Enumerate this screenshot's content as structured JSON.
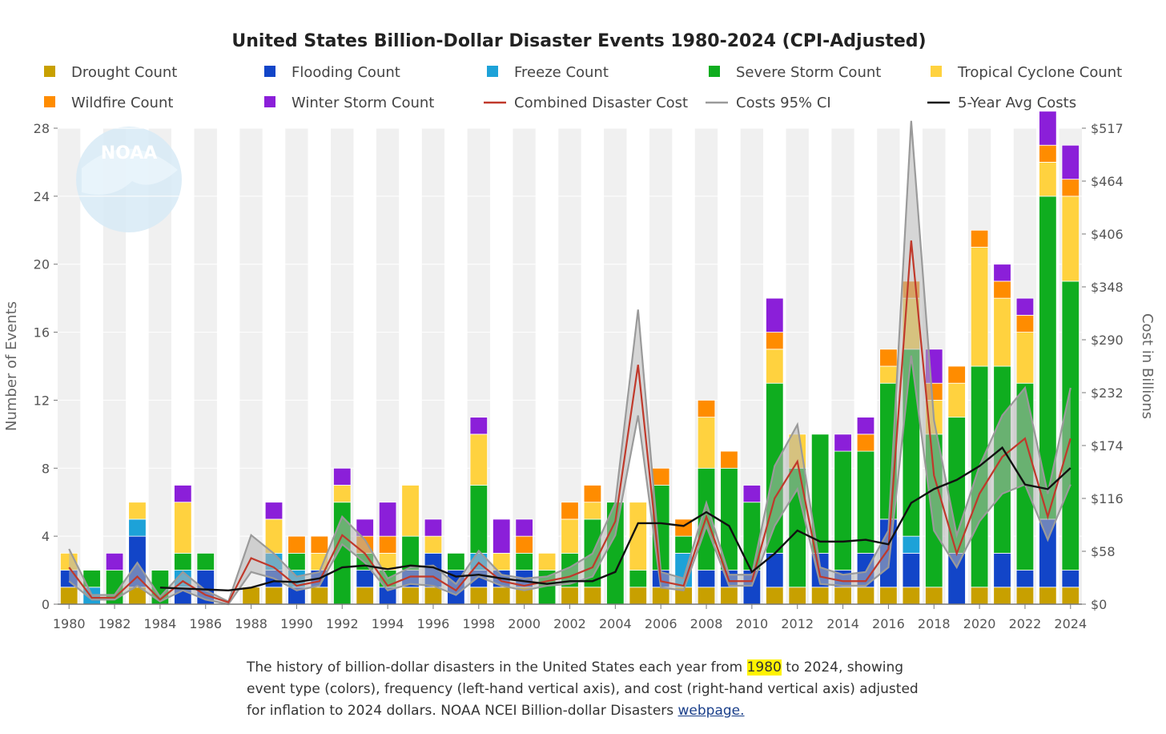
{
  "caption": {
    "part1": "The history of billion-dollar disasters in the United States each year from ",
    "highlight": "1980",
    "part2": " to 2024, showing event type (colors), frequency (left-hand vertical axis), and cost (right-hand vertical axis) adjusted for inflation to 2024 dollars. NOAA NCEI Billion-dollar Disasters ",
    "link_text": "webpage."
  },
  "logo_text": "NOAA",
  "chart_data": {
    "type": "bar",
    "stacked": true,
    "title": "United States Billion-Dollar Disaster Events 1980-2024 (CPI-Adjusted)",
    "ylabel": "Number of Events",
    "y2label": "Cost in Billions",
    "ylim": [
      0,
      28
    ],
    "y2lim": [
      0,
      517
    ],
    "yticks": [
      0,
      4,
      8,
      12,
      16,
      20,
      24,
      28
    ],
    "y2ticks": [
      "$0",
      "$58",
      "$116",
      "$174",
      "$232",
      "$290",
      "$348",
      "$406",
      "$464",
      "$517"
    ],
    "categories": [
      1980,
      1981,
      1982,
      1983,
      1984,
      1985,
      1986,
      1987,
      1988,
      1989,
      1990,
      1991,
      1992,
      1993,
      1994,
      1995,
      1996,
      1997,
      1998,
      1999,
      2000,
      2001,
      2002,
      2003,
      2004,
      2005,
      2006,
      2007,
      2008,
      2009,
      2010,
      2011,
      2012,
      2013,
      2014,
      2015,
      2016,
      2017,
      2018,
      2019,
      2020,
      2021,
      2022,
      2023,
      2024
    ],
    "xtick_labels": [
      "1980",
      "1982",
      "1984",
      "1986",
      "1988",
      "1990",
      "1992",
      "1994",
      "1996",
      "1998",
      "2000",
      "2002",
      "2004",
      "2006",
      "2008",
      "2010",
      "2012",
      "2014",
      "2016",
      "2018",
      "2020",
      "2022",
      "2024"
    ],
    "series": [
      {
        "name": "Drought Count",
        "color": "#c8a000",
        "values": [
          1,
          0,
          0,
          1,
          0,
          0,
          0,
          0,
          1,
          1,
          0,
          1,
          0,
          1,
          0,
          1,
          1,
          0,
          1,
          1,
          1,
          0,
          1,
          1,
          0,
          1,
          1,
          1,
          1,
          1,
          0,
          1,
          1,
          1,
          1,
          1,
          1,
          1,
          1,
          0,
          1,
          1,
          1,
          1,
          1
        ]
      },
      {
        "name": "Flooding Count",
        "color": "#1245c8",
        "values": [
          1,
          0,
          0,
          3,
          0,
          1,
          2,
          0,
          0,
          1,
          1,
          1,
          0,
          1,
          1,
          1,
          2,
          2,
          1,
          1,
          1,
          0,
          0,
          0,
          0,
          0,
          1,
          0,
          1,
          1,
          2,
          2,
          0,
          2,
          1,
          2,
          4,
          2,
          0,
          3,
          0,
          2,
          1,
          4,
          1
        ]
      },
      {
        "name": "Freeze Count",
        "color": "#1da2d8",
        "values": [
          0,
          1,
          0,
          1,
          0,
          1,
          0,
          0,
          0,
          1,
          1,
          0,
          0,
          0,
          0,
          0,
          0,
          0,
          1,
          0,
          0,
          0,
          0,
          0,
          0,
          0,
          0,
          2,
          0,
          0,
          0,
          0,
          0,
          0,
          0,
          0,
          0,
          1,
          0,
          0,
          0,
          0,
          0,
          0,
          0
        ]
      },
      {
        "name": "Severe Storm Count",
        "color": "#0fad1f",
        "values": [
          0,
          1,
          2,
          0,
          2,
          1,
          1,
          0,
          0,
          0,
          1,
          0,
          6,
          1,
          1,
          2,
          0,
          1,
          4,
          0,
          1,
          2,
          2,
          4,
          6,
          1,
          5,
          1,
          6,
          6,
          4,
          10,
          7,
          7,
          7,
          6,
          8,
          11,
          9,
          8,
          13,
          11,
          11,
          19,
          17
        ]
      },
      {
        "name": "Tropical Cyclone Count",
        "color": "#ffd23f",
        "values": [
          1,
          0,
          0,
          1,
          0,
          3,
          0,
          0,
          0,
          2,
          0,
          1,
          1,
          0,
          1,
          3,
          1,
          0,
          3,
          1,
          0,
          1,
          2,
          1,
          0,
          4,
          0,
          0,
          3,
          0,
          0,
          2,
          2,
          0,
          0,
          0,
          1,
          3,
          2,
          2,
          7,
          4,
          3,
          2,
          5
        ]
      },
      {
        "name": "Wildfire Count",
        "color": "#ff8c00",
        "values": [
          0,
          0,
          0,
          0,
          0,
          0,
          0,
          0,
          0,
          0,
          1,
          1,
          0,
          1,
          1,
          0,
          0,
          0,
          0,
          0,
          1,
          0,
          1,
          1,
          0,
          0,
          1,
          1,
          1,
          1,
          0,
          1,
          0,
          0,
          0,
          1,
          1,
          1,
          1,
          1,
          1,
          1,
          1,
          1,
          1
        ]
      },
      {
        "name": "Winter Storm Count",
        "color": "#8b1fd9",
        "values": [
          0,
          0,
          1,
          0,
          0,
          1,
          0,
          0,
          0,
          1,
          0,
          0,
          1,
          1,
          2,
          0,
          1,
          0,
          1,
          2,
          1,
          0,
          0,
          0,
          0,
          0,
          0,
          0,
          0,
          0,
          1,
          2,
          0,
          0,
          1,
          1,
          0,
          0,
          2,
          0,
          0,
          1,
          1,
          2,
          2
        ]
      }
    ],
    "cost_series": {
      "name": "Combined Disaster Cost",
      "color": "#c0392b",
      "values": [
        40,
        7,
        7,
        30,
        5,
        25,
        10,
        2,
        50,
        40,
        20,
        25,
        75,
        55,
        20,
        30,
        30,
        15,
        45,
        25,
        20,
        25,
        30,
        40,
        90,
        260,
        25,
        20,
        95,
        25,
        25,
        115,
        155,
        30,
        25,
        25,
        60,
        395,
        140,
        55,
        120,
        160,
        180,
        95,
        180
      ]
    },
    "ci_band": {
      "name": "Costs 95% CI",
      "color": "#9a9a9a",
      "lower": [
        25,
        5,
        5,
        20,
        3,
        15,
        5,
        0,
        35,
        28,
        15,
        20,
        65,
        45,
        15,
        22,
        20,
        10,
        30,
        20,
        15,
        20,
        22,
        30,
        75,
        205,
        18,
        15,
        85,
        20,
        20,
        85,
        125,
        22,
        20,
        20,
        40,
        270,
        80,
        40,
        90,
        120,
        130,
        70,
        130
      ],
      "upper": [
        60,
        10,
        10,
        45,
        8,
        35,
        15,
        3,
        75,
        55,
        30,
        35,
        95,
        70,
        28,
        40,
        42,
        22,
        58,
        32,
        28,
        30,
        40,
        55,
        110,
        320,
        35,
        28,
        110,
        32,
        32,
        150,
        195,
        40,
        32,
        35,
        80,
        525,
        200,
        75,
        150,
        205,
        235,
        120,
        235
      ]
    },
    "avg_series": {
      "name": "5-Year Avg Costs",
      "color": "#111111",
      "values": [
        null,
        null,
        null,
        null,
        18,
        17,
        16,
        15,
        18,
        25,
        24,
        28,
        40,
        42,
        38,
        42,
        40,
        30,
        32,
        28,
        25,
        22,
        25,
        25,
        35,
        88,
        88,
        85,
        100,
        85,
        35,
        55,
        80,
        68,
        68,
        70,
        65,
        110,
        125,
        135,
        150,
        170,
        130,
        125,
        148
      ]
    },
    "legend": [
      "Drought Count",
      "Flooding Count",
      "Freeze Count",
      "Severe Storm Count",
      "Tropical Cyclone Count",
      "Wildfire Count",
      "Winter Storm Count",
      "Combined Disaster Cost",
      "Costs 95% CI",
      "5-Year Avg Costs"
    ]
  }
}
